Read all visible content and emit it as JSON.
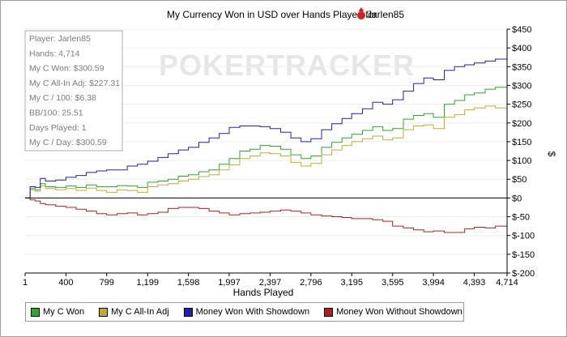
{
  "chart_data": {
    "type": "line",
    "title": "My Currency Won in USD over Hands Played for",
    "player_name": "Jarlen85",
    "watermark": "POKERTRACKER",
    "xlabel": "Hands Played",
    "ylabel": "$",
    "xlim": [
      1,
      4714
    ],
    "ylim": [
      -200,
      450
    ],
    "x_ticks": [
      1,
      400,
      799,
      1199,
      1598,
      1997,
      2397,
      2796,
      3195,
      3595,
      3994,
      4393,
      4714
    ],
    "x_tick_labels": [
      "1",
      "400",
      "799",
      "1,199",
      "1,598",
      "1,997",
      "2,397",
      "2,796",
      "3,195",
      "3,595",
      "3,994",
      "4,393",
      "4,714"
    ],
    "y_ticks": [
      -200,
      -150,
      -100,
      -50,
      0,
      50,
      100,
      150,
      200,
      250,
      300,
      350,
      400,
      450
    ],
    "y_tick_labels": [
      "$-200",
      "$-150",
      "$-100",
      "$-50",
      "$0",
      "$50",
      "$100",
      "$150",
      "$200",
      "$250",
      "$300",
      "$350",
      "$400",
      "$450"
    ],
    "stats": [
      "Player: Jarlen85",
      "Hands: 4,714",
      "My C Won: $300.59",
      "My C All-In Adj: $227.31",
      "My C / 100: $6.38",
      "BB/100: 25.51",
      "Days Played: 1",
      "My C / Day: $300.59"
    ],
    "legend_position": "bottom",
    "series": [
      {
        "name": "My C Won",
        "color": "#2ca82c",
        "x": [
          1,
          50,
          100,
          150,
          200,
          300,
          400,
          500,
          600,
          700,
          799,
          900,
          1000,
          1100,
          1199,
          1300,
          1400,
          1500,
          1598,
          1700,
          1800,
          1900,
          1997,
          2100,
          2200,
          2300,
          2397,
          2500,
          2600,
          2700,
          2796,
          2900,
          3000,
          3100,
          3195,
          3300,
          3400,
          3500,
          3595,
          3700,
          3800,
          3900,
          3994,
          4100,
          4200,
          4300,
          4393,
          4500,
          4600,
          4714
        ],
        "y": [
          0,
          25,
          22,
          38,
          30,
          28,
          32,
          28,
          35,
          30,
          30,
          33,
          32,
          28,
          42,
          45,
          50,
          58,
          62,
          70,
          75,
          90,
          105,
          125,
          130,
          140,
          138,
          130,
          115,
          105,
          112,
          135,
          148,
          160,
          170,
          180,
          190,
          180,
          185,
          210,
          220,
          225,
          215,
          250,
          260,
          275,
          280,
          290,
          295,
          301
        ]
      },
      {
        "name": "My C All-In Adj",
        "color": "#b9b030",
        "x": [
          1,
          50,
          100,
          150,
          200,
          300,
          400,
          500,
          600,
          700,
          799,
          900,
          1000,
          1100,
          1199,
          1300,
          1400,
          1500,
          1598,
          1700,
          1800,
          1900,
          1997,
          2100,
          2200,
          2300,
          2397,
          2500,
          2600,
          2700,
          2796,
          2900,
          3000,
          3100,
          3195,
          3300,
          3400,
          3500,
          3595,
          3700,
          3800,
          3900,
          3994,
          4100,
          4200,
          4300,
          4393,
          4500,
          4600,
          4714
        ],
        "y": [
          0,
          22,
          18,
          32,
          25,
          22,
          25,
          20,
          26,
          20,
          15,
          22,
          20,
          15,
          30,
          35,
          38,
          45,
          50,
          57,
          62,
          75,
          88,
          105,
          112,
          120,
          118,
          112,
          95,
          85,
          92,
          115,
          128,
          140,
          150,
          158,
          165,
          155,
          160,
          182,
          192,
          195,
          185,
          215,
          222,
          235,
          240,
          245,
          240,
          227
        ]
      },
      {
        "name": "Money Won With Showdown",
        "color": "#2020b0",
        "x": [
          1,
          50,
          100,
          150,
          200,
          300,
          400,
          500,
          600,
          700,
          799,
          900,
          1000,
          1100,
          1199,
          1300,
          1400,
          1500,
          1598,
          1700,
          1800,
          1900,
          1997,
          2100,
          2200,
          2300,
          2397,
          2500,
          2600,
          2700,
          2796,
          2900,
          3000,
          3100,
          3195,
          3300,
          3400,
          3500,
          3595,
          3700,
          3800,
          3900,
          3994,
          4100,
          4200,
          4300,
          4393,
          4500,
          4600,
          4714
        ],
        "y": [
          0,
          30,
          28,
          52,
          45,
          48,
          55,
          60,
          68,
          72,
          75,
          75,
          85,
          90,
          98,
          108,
          118,
          128,
          135,
          148,
          160,
          172,
          188,
          192,
          192,
          190,
          185,
          175,
          160,
          150,
          158,
          182,
          198,
          212,
          225,
          238,
          255,
          250,
          262,
          285,
          305,
          320,
          315,
          340,
          350,
          355,
          360,
          365,
          370,
          378
        ]
      },
      {
        "name": "Money Won Without Showdown",
        "color": "#b02020",
        "x": [
          1,
          50,
          100,
          150,
          200,
          300,
          400,
          500,
          600,
          700,
          799,
          900,
          1000,
          1100,
          1199,
          1300,
          1400,
          1500,
          1598,
          1700,
          1800,
          1900,
          1997,
          2100,
          2200,
          2300,
          2397,
          2500,
          2600,
          2700,
          2796,
          2900,
          3000,
          3100,
          3195,
          3300,
          3400,
          3500,
          3595,
          3700,
          3800,
          3900,
          3994,
          4100,
          4200,
          4300,
          4393,
          4500,
          4600,
          4714
        ],
        "y": [
          0,
          -5,
          -8,
          -15,
          -18,
          -22,
          -25,
          -30,
          -35,
          -42,
          -45,
          -42,
          -40,
          -45,
          -42,
          -38,
          -28,
          -25,
          -25,
          -28,
          -35,
          -40,
          -45,
          -42,
          -40,
          -38,
          -35,
          -32,
          -35,
          -40,
          -45,
          -48,
          -50,
          -52,
          -55,
          -55,
          -58,
          -62,
          -75,
          -80,
          -85,
          -90,
          -88,
          -92,
          -92,
          -82,
          -78,
          -80,
          -75,
          -78
        ]
      }
    ]
  }
}
